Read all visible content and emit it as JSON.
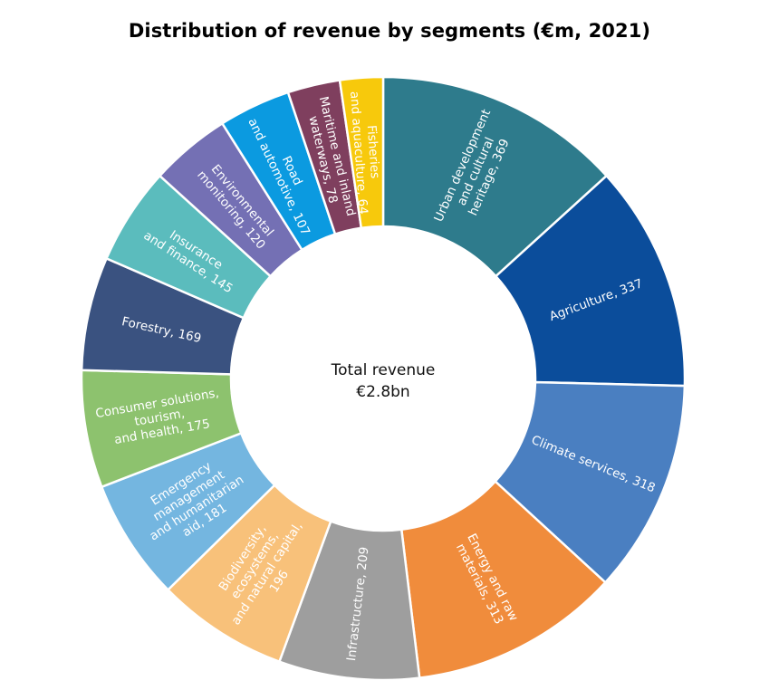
{
  "chart_data": {
    "type": "pie",
    "title": "Distribution of revenue by segments (€m, 2021)",
    "center_text": [
      "Total revenue",
      "€2.8bn"
    ],
    "unit": "€m",
    "slices": [
      {
        "name": "Urban development and cultural heritage",
        "value": 369,
        "color": "#2e7b8c",
        "label_lines": [
          "Urban development",
          "and cultural",
          "heritage, 369"
        ]
      },
      {
        "name": "Agriculture",
        "value": 337,
        "color": "#0b4d9b",
        "label_lines": [
          "Agriculture, 337"
        ]
      },
      {
        "name": "Climate services",
        "value": 318,
        "color": "#4a7fc1",
        "label_lines": [
          "Climate services, 318"
        ]
      },
      {
        "name": "Energy and raw materials",
        "value": 313,
        "color": "#f08c3c",
        "label_lines": [
          "Energy and raw",
          "materials, 313"
        ]
      },
      {
        "name": "Infrastructure",
        "value": 209,
        "color": "#9e9e9e",
        "label_lines": [
          "Infrastructure, 209"
        ]
      },
      {
        "name": "Biodiversity, ecosystems, and natural capital",
        "value": 196,
        "color": "#f8c17a",
        "label_lines": [
          "Biodiversity,",
          "ecosystems,",
          "and natural capital,",
          "196"
        ]
      },
      {
        "name": "Emergency management and humanitarian aid",
        "value": 181,
        "color": "#74b6e0",
        "label_lines": [
          "Emergency",
          "management",
          "and humanitarian",
          "aid, 181"
        ]
      },
      {
        "name": "Consumer solutions, tourism, and health",
        "value": 175,
        "color": "#8dc26e",
        "label_lines": [
          "Consumer solutions,",
          "tourism,",
          "and health, 175"
        ]
      },
      {
        "name": "Forestry",
        "value": 169,
        "color": "#3a5280",
        "label_lines": [
          "Forestry, 169"
        ]
      },
      {
        "name": "Insurance and finance",
        "value": 145,
        "color": "#5bbcbd",
        "label_lines": [
          "Insurance",
          "and finance, 145"
        ]
      },
      {
        "name": "Environmental monitoring",
        "value": 120,
        "color": "#7470b4",
        "label_lines": [
          "Environmental",
          "monitoring, 120"
        ]
      },
      {
        "name": "Road and automotive",
        "value": 107,
        "color": "#0b9ae0",
        "label_lines": [
          "Road",
          "and automotive, 107"
        ]
      },
      {
        "name": "Maritime and inland waterways",
        "value": 78,
        "color": "#7f3f5e",
        "label_lines": [
          "Maritime and inland",
          "waterways, 78"
        ]
      },
      {
        "name": "Fisheries and aquaculture",
        "value": 64,
        "color": "#f7c90c",
        "label_lines": [
          "Fisheries",
          "and aquaculture, 64"
        ]
      }
    ]
  }
}
